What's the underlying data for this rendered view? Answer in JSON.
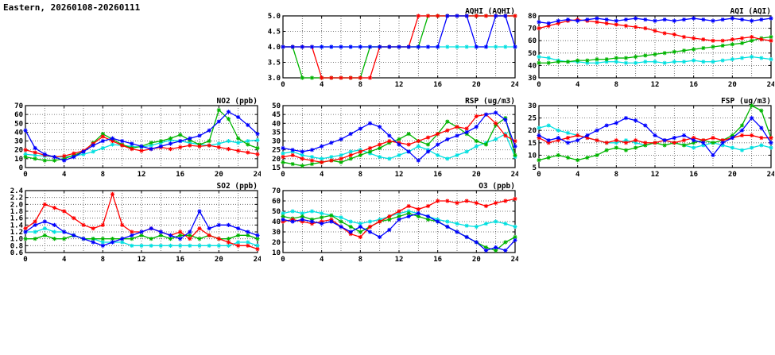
{
  "page_title": "Eastern, 20260108-20260111",
  "hours": [
    0,
    1,
    2,
    3,
    4,
    5,
    6,
    7,
    8,
    9,
    10,
    11,
    12,
    13,
    14,
    15,
    16,
    17,
    18,
    19,
    20,
    21,
    22,
    23,
    24
  ],
  "xticks": [
    0,
    4,
    8,
    12,
    16,
    20,
    24
  ],
  "x_minor_step": 2,
  "series_colors": {
    "blue": "#0000ff",
    "red": "#ff0000",
    "green": "#00b400",
    "cyan": "#00e0e0"
  },
  "chart_data": [
    {
      "id": "aqhi",
      "type": "line",
      "title": "AQHI (AQHI)",
      "xlabel": "",
      "ylabel": "",
      "ylim": [
        3.0,
        5.0
      ],
      "yticks": [
        3.0,
        3.5,
        4.0,
        4.5,
        5.0
      ],
      "ytick_labels": [
        "3.0",
        "3.5",
        "4.0",
        "4.5",
        "5.0"
      ],
      "series": [
        {
          "name": "blue",
          "color": "#0000ff",
          "values": [
            4,
            4,
            4,
            4,
            4,
            4,
            4,
            4,
            4,
            4,
            4,
            4,
            4,
            4,
            4,
            4,
            4,
            5,
            5,
            5,
            4,
            4,
            5,
            5,
            4
          ]
        },
        {
          "name": "red",
          "color": "#ff0000",
          "values": [
            4,
            4,
            4,
            4,
            3,
            3,
            3,
            3,
            3,
            3,
            4,
            4,
            4,
            4,
            5,
            5,
            5,
            5,
            5,
            5,
            5,
            5,
            5,
            5,
            5
          ]
        },
        {
          "name": "green",
          "color": "#00b400",
          "values": [
            4,
            4,
            3,
            3,
            3,
            3,
            3,
            3,
            3,
            4,
            4,
            4,
            4,
            4,
            4,
            5,
            5,
            5,
            5,
            5,
            5,
            5,
            5,
            5,
            5
          ]
        },
        {
          "name": "cyan",
          "color": "#00e0e0",
          "values": [
            4,
            4,
            4,
            4,
            4,
            4,
            4,
            4,
            4,
            4,
            4,
            4,
            4,
            4,
            4,
            4,
            4,
            4,
            4,
            4,
            4,
            4,
            4,
            4,
            4
          ]
        }
      ]
    },
    {
      "id": "aqi",
      "type": "line",
      "title": "AQI (AQI)",
      "xlabel": "",
      "ylabel": "",
      "ylim": [
        30,
        80
      ],
      "yticks": [
        30,
        40,
        50,
        60,
        70,
        80
      ],
      "ytick_labels": [
        "30",
        "40",
        "50",
        "60",
        "70",
        "80"
      ],
      "series": [
        {
          "name": "blue",
          "color": "#0000ff",
          "values": [
            75,
            74,
            76,
            77,
            76,
            77,
            78,
            77,
            76,
            77,
            78,
            77,
            76,
            77,
            76,
            77,
            78,
            77,
            76,
            77,
            78,
            77,
            76,
            77,
            78
          ]
        },
        {
          "name": "red",
          "color": "#ff0000",
          "values": [
            70,
            72,
            74,
            76,
            77,
            76,
            75,
            74,
            73,
            72,
            71,
            70,
            68,
            66,
            65,
            63,
            62,
            61,
            60,
            60,
            61,
            62,
            63,
            61,
            60
          ]
        },
        {
          "name": "green",
          "color": "#00b400",
          "values": [
            42,
            42,
            43,
            43,
            44,
            44,
            45,
            45,
            46,
            46,
            47,
            48,
            49,
            50,
            51,
            52,
            53,
            54,
            55,
            56,
            57,
            58,
            60,
            62,
            63
          ]
        },
        {
          "name": "cyan",
          "color": "#00e0e0",
          "values": [
            47,
            46,
            44,
            43,
            43,
            42,
            42,
            43,
            43,
            42,
            42,
            43,
            43,
            42,
            43,
            43,
            44,
            43,
            43,
            44,
            45,
            46,
            47,
            46,
            45
          ]
        }
      ]
    },
    {
      "id": "no2",
      "type": "line",
      "title": "NO2 (ppb)",
      "xlabel": "",
      "ylabel": "",
      "ylim": [
        0,
        70
      ],
      "yticks": [
        0,
        10,
        20,
        30,
        40,
        50,
        60,
        70
      ],
      "ytick_labels": [
        "0",
        "10",
        "20",
        "30",
        "40",
        "50",
        "60",
        "70"
      ],
      "series": [
        {
          "name": "blue",
          "color": "#0000ff",
          "values": [
            42,
            22,
            15,
            12,
            8,
            12,
            18,
            25,
            30,
            33,
            30,
            27,
            24,
            21,
            24,
            27,
            30,
            33,
            36,
            42,
            52,
            63,
            57,
            48,
            38
          ]
        },
        {
          "name": "red",
          "color": "#ff0000",
          "values": [
            20,
            17,
            14,
            12,
            13,
            16,
            19,
            27,
            35,
            30,
            25,
            21,
            19,
            21,
            23,
            21,
            23,
            25,
            24,
            25,
            23,
            21,
            19,
            17,
            15
          ]
        },
        {
          "name": "green",
          "color": "#00b400",
          "values": [
            12,
            10,
            8,
            8,
            10,
            14,
            18,
            28,
            38,
            32,
            26,
            22,
            24,
            28,
            30,
            33,
            37,
            31,
            26,
            30,
            65,
            55,
            33,
            26,
            22
          ]
        },
        {
          "name": "cyan",
          "color": "#00e0e0",
          "values": [
            15,
            14,
            13,
            12,
            12,
            13,
            15,
            18,
            22,
            26,
            25,
            24,
            23,
            25,
            28,
            31,
            30,
            28,
            26,
            25,
            27,
            30,
            28,
            30,
            31
          ]
        }
      ]
    },
    {
      "id": "rsp",
      "type": "line",
      "title": "RSP (ug/m3)",
      "xlabel": "",
      "ylabel": "",
      "ylim": [
        15,
        50
      ],
      "yticks": [
        15,
        20,
        25,
        30,
        35,
        40,
        45,
        50
      ],
      "ytick_labels": [
        "15",
        "20",
        "25",
        "30",
        "35",
        "40",
        "45",
        "50"
      ],
      "series": [
        {
          "name": "blue",
          "color": "#0000ff",
          "values": [
            26,
            25,
            24,
            25,
            27,
            29,
            31,
            34,
            37,
            40,
            38,
            33,
            28,
            24,
            19,
            24,
            28,
            31,
            33,
            35,
            38,
            45,
            46,
            42,
            27
          ]
        },
        {
          "name": "red",
          "color": "#ff0000",
          "values": [
            21,
            22,
            20,
            19,
            18,
            19,
            20,
            22,
            24,
            26,
            28,
            30,
            29,
            28,
            30,
            32,
            34,
            36,
            38,
            37,
            44,
            45,
            40,
            33,
            30
          ]
        },
        {
          "name": "green",
          "color": "#00b400",
          "values": [
            18,
            17,
            16,
            17,
            18,
            19,
            18,
            20,
            22,
            24,
            26,
            29,
            31,
            34,
            30,
            28,
            34,
            41,
            38,
            34,
            30,
            28,
            39,
            43,
            22
          ]
        },
        {
          "name": "cyan",
          "color": "#00e0e0",
          "values": [
            23,
            24,
            22,
            21,
            20,
            21,
            22,
            24,
            25,
            23,
            21,
            20,
            22,
            24,
            27,
            25,
            22,
            20,
            22,
            24,
            27,
            29,
            31,
            34,
            21
          ]
        }
      ]
    },
    {
      "id": "fsp",
      "type": "line",
      "title": "FSP (ug/m3)",
      "xlabel": "",
      "ylabel": "",
      "ylim": [
        5,
        30
      ],
      "yticks": [
        5,
        10,
        15,
        20,
        25,
        30
      ],
      "ytick_labels": [
        "5",
        "10",
        "15",
        "20",
        "25",
        "30"
      ],
      "series": [
        {
          "name": "blue",
          "color": "#0000ff",
          "values": [
            18,
            16,
            17,
            15,
            16,
            18,
            20,
            22,
            23,
            25,
            24,
            22,
            18,
            16,
            17,
            18,
            16,
            15,
            10,
            15,
            17,
            20,
            25,
            21,
            15
          ]
        },
        {
          "name": "red",
          "color": "#ff0000",
          "values": [
            17,
            15,
            16,
            17,
            18,
            17,
            16,
            15,
            16,
            15,
            16,
            15,
            15,
            16,
            15,
            16,
            17,
            16,
            17,
            16,
            17,
            18,
            18,
            17,
            17
          ]
        },
        {
          "name": "green",
          "color": "#00b400",
          "values": [
            8,
            9,
            10,
            9,
            8,
            9,
            10,
            12,
            13,
            12,
            13,
            14,
            15,
            14,
            15,
            14,
            15,
            16,
            15,
            16,
            18,
            22,
            30,
            28,
            17
          ]
        },
        {
          "name": "cyan",
          "color": "#00e0e0",
          "values": [
            21,
            22,
            20,
            19,
            18,
            17,
            16,
            15,
            15,
            16,
            15,
            14,
            15,
            16,
            15,
            14,
            13,
            14,
            15,
            14,
            13,
            12,
            13,
            14,
            13
          ]
        }
      ]
    },
    {
      "id": "so2",
      "type": "line",
      "title": "SO2 (ppb)",
      "xlabel": "",
      "ylabel": "",
      "ylim": [
        0.6,
        2.4
      ],
      "yticks": [
        0.6,
        0.8,
        1.0,
        1.2,
        1.4,
        1.6,
        1.8,
        2.0,
        2.2,
        2.4
      ],
      "ytick_labels": [
        "0.6",
        "0.8",
        "1.0",
        "1.2",
        "1.4",
        "1.6",
        "1.8",
        "2.0",
        "2.2",
        "2.4"
      ],
      "series": [
        {
          "name": "blue",
          "color": "#0000ff",
          "values": [
            1.2,
            1.4,
            1.5,
            1.4,
            1.2,
            1.1,
            1.0,
            0.9,
            0.8,
            0.9,
            1.0,
            1.1,
            1.2,
            1.3,
            1.2,
            1.1,
            1.0,
            1.2,
            1.8,
            1.3,
            1.4,
            1.4,
            1.3,
            1.2,
            1.1
          ]
        },
        {
          "name": "red",
          "color": "#ff0000",
          "values": [
            1.3,
            1.5,
            2.0,
            1.9,
            1.8,
            1.6,
            1.4,
            1.3,
            1.4,
            2.3,
            1.4,
            1.2,
            1.2,
            1.3,
            1.2,
            1.1,
            1.2,
            1.0,
            1.3,
            1.1,
            1.0,
            0.9,
            0.8,
            0.8,
            0.7
          ]
        },
        {
          "name": "green",
          "color": "#00b400",
          "values": [
            1.0,
            1.0,
            1.1,
            1.0,
            1.0,
            1.1,
            1.0,
            1.0,
            1.0,
            1.0,
            1.0,
            1.0,
            1.1,
            1.0,
            1.1,
            1.0,
            1.1,
            1.1,
            1.0,
            1.1,
            1.0,
            1.0,
            1.1,
            1.1,
            1.0
          ]
        },
        {
          "name": "cyan",
          "color": "#00e0e0",
          "values": [
            1.2,
            1.2,
            1.3,
            1.2,
            1.2,
            1.1,
            1.0,
            1.0,
            0.9,
            0.9,
            0.9,
            0.8,
            0.8,
            0.8,
            0.8,
            0.8,
            0.8,
            0.8,
            0.8,
            0.8,
            0.8,
            0.8,
            0.9,
            0.9,
            0.8
          ]
        }
      ]
    },
    {
      "id": "o3",
      "type": "line",
      "title": "O3 (ppb)",
      "xlabel": "",
      "ylabel": "",
      "ylim": [
        10,
        70
      ],
      "yticks": [
        10,
        20,
        30,
        40,
        50,
        60,
        70
      ],
      "ytick_labels": [
        "10",
        "20",
        "30",
        "40",
        "50",
        "60",
        "70"
      ],
      "series": [
        {
          "name": "blue",
          "color": "#0000ff",
          "values": [
            42,
            40,
            42,
            40,
            38,
            40,
            35,
            30,
            35,
            30,
            25,
            32,
            42,
            45,
            48,
            45,
            40,
            35,
            30,
            25,
            20,
            12,
            15,
            12,
            22
          ]
        },
        {
          "name": "red",
          "color": "#ff0000",
          "values": [
            40,
            42,
            40,
            38,
            40,
            42,
            35,
            28,
            25,
            35,
            40,
            45,
            50,
            55,
            52,
            55,
            60,
            60,
            58,
            60,
            58,
            55,
            58,
            60,
            62
          ]
        },
        {
          "name": "green",
          "color": "#00b400",
          "values": [
            45,
            43,
            45,
            42,
            44,
            46,
            40,
            35,
            30,
            35,
            40,
            42,
            45,
            48,
            45,
            42,
            40,
            35,
            30,
            25,
            20,
            15,
            12,
            20,
            25
          ]
        },
        {
          "name": "cyan",
          "color": "#00e0e0",
          "values": [
            48,
            50,
            48,
            50,
            48,
            46,
            44,
            40,
            38,
            40,
            42,
            45,
            48,
            50,
            48,
            45,
            42,
            40,
            38,
            36,
            35,
            38,
            40,
            38,
            35
          ]
        }
      ]
    }
  ]
}
